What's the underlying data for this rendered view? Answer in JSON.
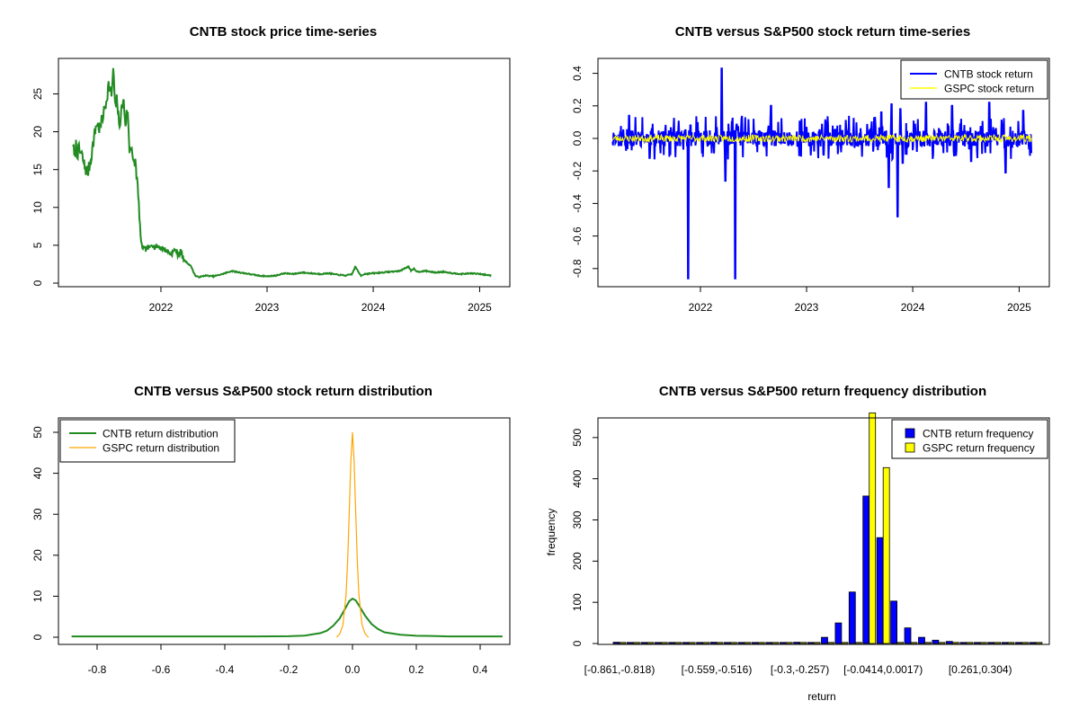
{
  "colors": {
    "price_line": "#228b22",
    "cntb_return": "#0000ff",
    "gspc_return": "#ffff00",
    "cntb_density": "#228b22",
    "gspc_density": "#ffa500",
    "cntb_hist": "#0000ff",
    "gspc_hist": "#ffff00"
  },
  "chart_data": [
    {
      "type": "line",
      "title": "CNTB stock price time-series",
      "xlabel": "",
      "ylabel": "",
      "x_ticks": [
        "2022",
        "2023",
        "2024",
        "2025"
      ],
      "y_ticks": [
        "0",
        "5",
        "10",
        "15",
        "20",
        "25"
      ],
      "xlim": [
        "2021-03-01",
        "2025-02-15"
      ],
      "ylim": [
        0,
        28.5
      ],
      "series": [
        {
          "x": [
            "2021-03-05",
            "2021-03-10",
            "2021-03-15",
            "2021-03-20",
            "2021-03-25",
            "2021-04-05",
            "2021-04-15",
            "2021-04-25",
            "2021-05-05",
            "2021-05-15",
            "2021-05-25",
            "2021-06-05",
            "2021-06-15",
            "2021-06-25",
            "2021-07-05",
            "2021-07-15",
            "2021-07-22",
            "2021-07-28",
            "2021-08-03",
            "2021-08-10",
            "2021-08-18",
            "2021-08-25",
            "2021-09-01",
            "2021-09-08",
            "2021-09-15",
            "2021-09-22",
            "2021-09-28",
            "2021-10-05",
            "2021-10-12",
            "2021-10-18",
            "2021-10-25",
            "2021-11-01",
            "2021-11-08",
            "2021-11-15",
            "2021-11-22",
            "2021-12-01",
            "2021-12-10",
            "2021-12-20",
            "2022-01-05",
            "2022-01-20",
            "2022-02-05",
            "2022-02-20",
            "2022-03-01",
            "2022-03-10",
            "2022-03-20",
            "2022-04-01",
            "2022-04-15",
            "2022-04-25",
            "2022-05-01",
            "2022-05-15",
            "2022-06-01",
            "2022-07-01",
            "2022-08-01",
            "2022-09-01",
            "2022-10-01",
            "2022-11-01",
            "2022-12-01",
            "2023-01-01",
            "2023-02-01",
            "2023-03-01",
            "2023-04-01",
            "2023-05-01",
            "2023-06-01",
            "2023-07-01",
            "2023-08-01",
            "2023-09-01",
            "2023-10-01",
            "2023-10-20",
            "2023-11-01",
            "2023-11-10",
            "2023-11-20",
            "2023-12-01",
            "2024-01-01",
            "2024-02-01",
            "2024-03-01",
            "2024-04-01",
            "2024-05-01",
            "2024-05-10",
            "2024-05-20",
            "2024-06-01",
            "2024-07-01",
            "2024-08-01",
            "2024-09-01",
            "2024-10-01",
            "2024-11-01",
            "2024-12-01",
            "2025-01-01",
            "2025-01-20",
            "2025-02-10"
          ],
          "y": [
            18.5,
            16.2,
            18.3,
            17.1,
            17.6,
            16.8,
            15.2,
            14.6,
            16.4,
            19.0,
            21.2,
            20.3,
            22.0,
            23.6,
            26.2,
            24.9,
            28.3,
            22.5,
            24.6,
            20.6,
            22.7,
            24.3,
            21.0,
            23.1,
            17.6,
            18.5,
            15.4,
            16.1,
            13.2,
            9.5,
            5.1,
            4.6,
            4.4,
            4.7,
            4.5,
            5.3,
            4.7,
            4.9,
            4.6,
            4.3,
            3.8,
            4.5,
            3.7,
            4.2,
            3.1,
            2.7,
            2.2,
            1.3,
            0.9,
            0.8,
            1.0,
            0.9,
            1.2,
            1.6,
            1.4,
            1.2,
            1.0,
            0.9,
            1.0,
            1.3,
            1.2,
            1.4,
            1.3,
            1.2,
            1.3,
            1.1,
            1.0,
            1.2,
            2.2,
            1.5,
            1.0,
            1.2,
            1.3,
            1.4,
            1.5,
            1.6,
            2.2,
            1.6,
            1.9,
            1.5,
            1.6,
            1.4,
            1.5,
            1.3,
            1.2,
            1.3,
            1.2,
            1.1,
            1.0
          ]
        }
      ]
    },
    {
      "type": "line",
      "title": "CNTB versus S&P500 stock return time-series",
      "xlabel": "",
      "ylabel": "",
      "x_ticks": [
        "2022",
        "2023",
        "2024",
        "2025"
      ],
      "y_ticks": [
        "-0.8",
        "-0.6",
        "-0.4",
        "-0.2",
        "0.0",
        "0.2",
        "0.4"
      ],
      "xlim": [
        "2021-03-01",
        "2025-02-15"
      ],
      "ylim": [
        -0.86,
        0.44
      ],
      "legend": "top-right",
      "series": [
        {
          "name": "CNTB stock return",
          "x": [
            "2021-03-10",
            "2021-05-01",
            "2021-07-10",
            "2021-11-10",
            "2021-11-20",
            "2021-11-28",
            "2022-03-15",
            "2022-03-28",
            "2022-04-20",
            "2022-05-01",
            "2022-05-10",
            "2022-09-01",
            "2023-03-01",
            "2023-09-15",
            "2023-10-10",
            "2023-10-20",
            "2023-11-10",
            "2023-11-20",
            "2023-11-28",
            "2024-02-15",
            "2024-05-15",
            "2024-07-20",
            "2024-09-20",
            "2024-11-15",
            "2025-01-15",
            "2025-02-10"
          ],
          "y": [
            0.0,
            0.14,
            -0.12,
            0.05,
            -0.86,
            0.08,
            0.43,
            -0.26,
            0.1,
            -0.86,
            0.07,
            0.2,
            -0.1,
            0.16,
            -0.3,
            0.21,
            -0.48,
            0.18,
            -0.15,
            0.22,
            0.2,
            -0.14,
            0.22,
            -0.21,
            0.17,
            0.02
          ]
        },
        {
          "name": "GSPC stock return",
          "x": [
            "2021-03-01",
            "2025-02-15"
          ],
          "y": [
            0.0,
            0.0
          ]
        }
      ]
    },
    {
      "type": "line",
      "title": "CNTB versus S&P500 stock return distribution",
      "xlabel": "",
      "ylabel": "",
      "x_ticks": [
        "-0.8",
        "-0.6",
        "-0.4",
        "-0.2",
        "0.0",
        "0.2",
        "0.4"
      ],
      "y_ticks": [
        "0",
        "10",
        "20",
        "30",
        "40",
        "50"
      ],
      "xlim": [
        -0.9,
        0.48
      ],
      "ylim": [
        0,
        52
      ],
      "legend": "top-left",
      "series": [
        {
          "name": "CNTB return distribution",
          "x": [
            -0.88,
            -0.6,
            -0.3,
            -0.2,
            -0.15,
            -0.1,
            -0.08,
            -0.06,
            -0.04,
            -0.02,
            -0.01,
            0.0,
            0.01,
            0.02,
            0.04,
            0.06,
            0.08,
            0.1,
            0.15,
            0.2,
            0.25,
            0.3,
            0.47
          ],
          "y": [
            0.2,
            0.2,
            0.2,
            0.25,
            0.4,
            1.0,
            1.6,
            2.8,
            4.6,
            7.4,
            8.8,
            9.4,
            9.0,
            7.8,
            5.2,
            3.2,
            2.0,
            1.2,
            0.6,
            0.35,
            0.3,
            0.2,
            0.2
          ]
        },
        {
          "name": "GSPC return distribution",
          "x": [
            -0.05,
            -0.04,
            -0.03,
            -0.02,
            -0.015,
            -0.01,
            -0.005,
            0.0,
            0.005,
            0.01,
            0.015,
            0.02,
            0.03,
            0.04,
            0.05
          ],
          "y": [
            0.0,
            0.8,
            3.0,
            10.5,
            19.0,
            30.5,
            43.0,
            50.0,
            43.0,
            30.5,
            19.0,
            10.5,
            3.0,
            0.8,
            0.0
          ]
        }
      ]
    },
    {
      "type": "bar",
      "title": "CNTB versus S&P500 return frequency distribution",
      "xlabel": "return",
      "ylabel": "frequency",
      "y_ticks": [
        "0",
        "100",
        "200",
        "300",
        "400",
        "500"
      ],
      "x_tick_labels": [
        "[-0.861,-0.818)",
        "[-0.559,-0.516)",
        "[-0.3,-0.257)",
        "[-0.0414,0.0017)",
        "[0.261,0.304)"
      ],
      "ylim": [
        0,
        560
      ],
      "legend": "top-right",
      "series": [
        {
          "name": "CNTB return frequency",
          "values": [
            3,
            0,
            0,
            0,
            0,
            0,
            0,
            3,
            0,
            0,
            0,
            1,
            2,
            3,
            2,
            15,
            50,
            125,
            358,
            257,
            103,
            38,
            15,
            8,
            5,
            1,
            0,
            0,
            0,
            0,
            0
          ]
        },
        {
          "name": "GSPC return frequency",
          "values": [
            0,
            0,
            0,
            0,
            0,
            0,
            0,
            0,
            0,
            0,
            0,
            0,
            0,
            0,
            0,
            0,
            0,
            0,
            560,
            427,
            0,
            0,
            0,
            0,
            0,
            0,
            0,
            0,
            0,
            0,
            0
          ]
        }
      ]
    }
  ]
}
